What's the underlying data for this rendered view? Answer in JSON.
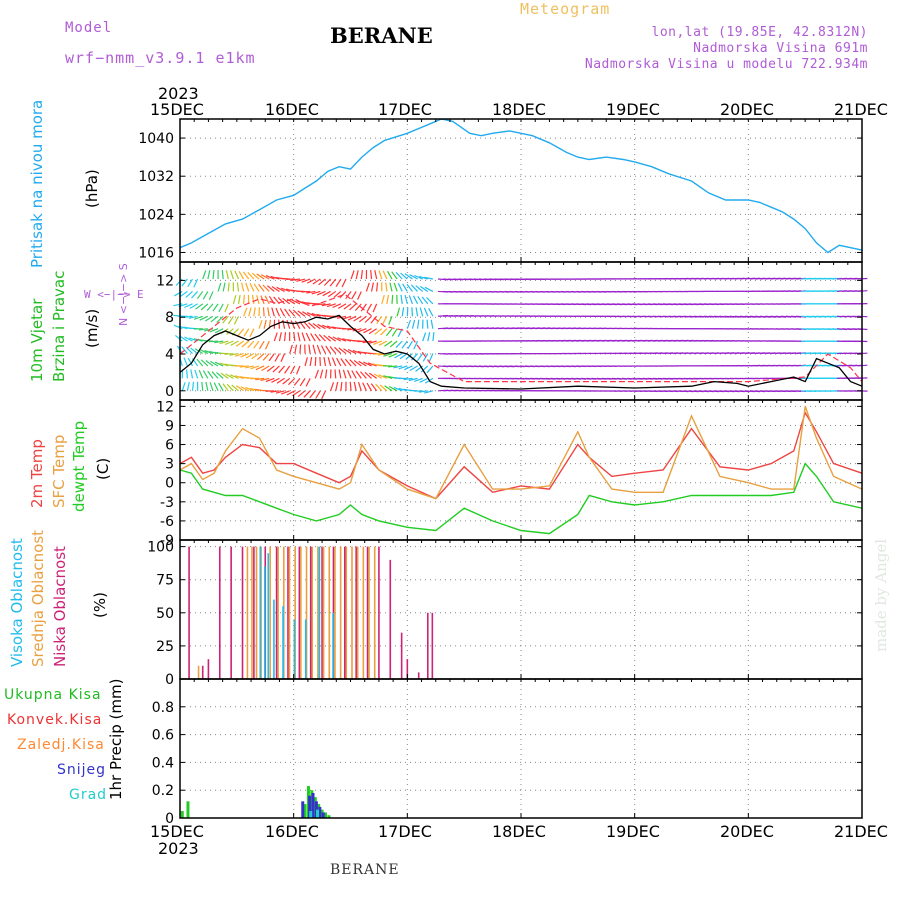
{
  "header": {
    "model_label": "Model",
    "model_name": "wrf−nmm_v3.9.1  e1km",
    "station": "BERANE",
    "product": "Meteogram",
    "coords": "lon,lat (19.85E, 42.8312N)",
    "elevation": "Nadmorska Visina 691m",
    "model_elevation": "Nadmorska Visina u modelu 722.934m"
  },
  "time_axis": {
    "year": "2023",
    "ticks": [
      "15DEC",
      "16DEC",
      "17DEC",
      "18DEC",
      "19DEC",
      "20DEC",
      "21DEC"
    ]
  },
  "labels": {
    "pressure": "Pritisak na nivou mora",
    "pressure_unit": "(hPa)",
    "wind_a": "10m Vjetar",
    "wind_b": "Brzina i Pravac",
    "wind_unit": "(m/s)",
    "wind_compass": "W <−|−> E",
    "wind_compass_b": "N <−|−> S",
    "temp_a": "2m Temp",
    "temp_b": "SFC Temp",
    "temp_c": "dewpt Temp",
    "temp_unit": "(C)",
    "cloud_a": "Visoka Oblacnost",
    "cloud_b": "Srednja Oblacnost",
    "cloud_c": "Niska Oblacnost",
    "cloud_unit": "(%)",
    "precip_unit": "1hr Precip (mm)",
    "credit": "made by Angel"
  },
  "precip_legend": [
    {
      "label": "Ukupna Kisa",
      "color": "#22bb22"
    },
    {
      "label": "Konvek.Kisa",
      "color": "#ee3333"
    },
    {
      "label": "Zaledj.Kisa",
      "color": "#ff8833"
    },
    {
      "label": "Snijeg",
      "color": "#3333cc"
    },
    {
      "label": "Grad",
      "color": "#22cccc"
    }
  ],
  "colors": {
    "pressure": "#22aaee",
    "temp2m": "#ee4444",
    "tempsfc": "#e8a040",
    "dewpt": "#22cc22",
    "cloud_high": "#22bbee",
    "cloud_mid": "#e8a040",
    "cloud_low": "#cc2277",
    "wind_gust": "#ff3344",
    "wind_speed": "#000000",
    "label_pressure": "#22aaee",
    "label_wind": "#22bb22"
  },
  "chart_data": [
    {
      "type": "line",
      "title": "Pritisak na nivou mora",
      "ylabel": "(hPa)",
      "ylim": [
        1014,
        1044
      ],
      "yticks": [
        1016,
        1024,
        1032,
        1040
      ],
      "grid": true,
      "x_days": [
        0,
        0.1,
        0.25,
        0.4,
        0.55,
        0.7,
        0.85,
        1.0,
        1.1,
        1.2,
        1.3,
        1.4,
        1.5,
        1.6,
        1.7,
        1.8,
        2.0,
        2.2,
        2.3,
        2.4,
        2.55,
        2.65,
        2.75,
        2.9,
        3.0,
        3.1,
        3.25,
        3.4,
        3.5,
        3.6,
        3.75,
        3.9,
        4.0,
        4.15,
        4.3,
        4.5,
        4.65,
        4.8,
        5.0,
        5.1,
        5.2,
        5.3,
        5.4,
        5.5,
        5.6,
        5.7,
        5.8,
        5.9,
        6.0
      ],
      "values": [
        1017,
        1018,
        1020,
        1022,
        1023,
        1025,
        1027,
        1028,
        1029.5,
        1031,
        1033,
        1034,
        1033.5,
        1036,
        1038,
        1039.5,
        1041,
        1043,
        1044,
        1043.5,
        1041,
        1040.5,
        1041,
        1041.5,
        1041,
        1040.5,
        1039,
        1037,
        1036,
        1035.5,
        1036,
        1035.5,
        1035,
        1034,
        1032.5,
        1031,
        1028.5,
        1027,
        1027,
        1026.5,
        1025.5,
        1024.5,
        1023,
        1021,
        1018,
        1016,
        1017.5,
        1017,
        1016.5
      ]
    },
    {
      "type": "line",
      "title": "10m Vjetar Brzina i Pravac",
      "ylabel": "(m/s)",
      "ylim": [
        -1,
        14
      ],
      "yticks": [
        0,
        4,
        8,
        12
      ],
      "grid": true,
      "series": [
        {
          "name": "wind speed",
          "x_days": [
            0,
            0.1,
            0.2,
            0.3,
            0.4,
            0.5,
            0.6,
            0.7,
            0.8,
            0.9,
            1.0,
            1.1,
            1.2,
            1.3,
            1.4,
            1.5,
            1.6,
            1.7,
            1.8,
            1.9,
            2.0,
            2.1,
            2.2,
            2.3,
            2.5,
            3.0,
            3.5,
            4.0,
            4.5,
            4.7,
            4.9,
            5.0,
            5.2,
            5.4,
            5.5,
            5.6,
            5.7,
            5.8,
            5.9,
            6.0
          ],
          "values": [
            2,
            3,
            5,
            6,
            6.5,
            6,
            5.5,
            6,
            7,
            7.5,
            7.3,
            7.5,
            8,
            7.8,
            8.2,
            7,
            6,
            4.5,
            4,
            4.3,
            4,
            3,
            1,
            0.5,
            0.3,
            0.2,
            0.5,
            0.3,
            0.5,
            1,
            0.8,
            0.5,
            1,
            1.5,
            1,
            3.5,
            3,
            2.5,
            1,
            0.5
          ]
        },
        {
          "name": "gust",
          "x_days": [
            0,
            0.15,
            0.3,
            0.5,
            0.7,
            0.85,
            1.0,
            1.15,
            1.3,
            1.45,
            1.6,
            1.8,
            2.0,
            2.2,
            2.5,
            3.0,
            3.5,
            4.0,
            4.5,
            5.0,
            5.5,
            5.7,
            5.9,
            6.0
          ],
          "values": [
            4,
            5.5,
            7,
            9,
            10,
            9.5,
            10,
            9.2,
            9.8,
            10.5,
            9,
            7,
            6.5,
            3,
            1,
            1,
            1,
            1,
            1,
            1,
            1.5,
            4,
            2.5,
            1
          ]
        }
      ]
    },
    {
      "type": "line",
      "title": "2m Temp / SFC Temp / dewpt Temp",
      "ylabel": "(C)",
      "ylim": [
        -9,
        13
      ],
      "yticks": [
        -9,
        -6,
        -3,
        0,
        3,
        6,
        9,
        12
      ],
      "grid": true,
      "series": [
        {
          "name": "2m Temp",
          "x_days": [
            0,
            0.1,
            0.2,
            0.3,
            0.4,
            0.55,
            0.7,
            0.85,
            1.0,
            1.2,
            1.4,
            1.5,
            1.6,
            1.75,
            2.0,
            2.25,
            2.5,
            2.75,
            3.0,
            3.25,
            3.5,
            3.6,
            3.8,
            4.0,
            4.25,
            4.5,
            4.75,
            5.0,
            5.2,
            5.4,
            5.5,
            5.6,
            5.75,
            6.0
          ],
          "values": [
            3,
            4,
            1.5,
            2,
            4,
            6,
            5.5,
            3,
            3,
            1.5,
            0,
            1,
            5,
            2,
            -0.5,
            -2.5,
            2.5,
            -1.5,
            -0.5,
            -1,
            6,
            4,
            1,
            1.5,
            2,
            8.5,
            2.5,
            2,
            3,
            5,
            11,
            8,
            3,
            1.5
          ]
        },
        {
          "name": "SFC Temp",
          "x_days": [
            0,
            0.1,
            0.2,
            0.3,
            0.4,
            0.55,
            0.7,
            0.85,
            1.0,
            1.2,
            1.4,
            1.5,
            1.6,
            1.75,
            2.0,
            2.25,
            2.5,
            2.75,
            3.0,
            3.25,
            3.5,
            3.6,
            3.8,
            4.0,
            4.25,
            4.5,
            4.75,
            5.0,
            5.2,
            5.4,
            5.5,
            5.6,
            5.75,
            6.0
          ],
          "values": [
            2,
            3,
            0.5,
            1.5,
            5,
            8.5,
            7,
            2,
            1,
            0,
            -1,
            0,
            6,
            2,
            -1,
            -2.5,
            6,
            -1,
            -1,
            -0.5,
            8,
            4,
            -1,
            -1.5,
            -1.5,
            10.5,
            1,
            0,
            -1,
            -1,
            12,
            7,
            1,
            -1
          ]
        },
        {
          "name": "dewpt Temp",
          "x_days": [
            0,
            0.1,
            0.2,
            0.3,
            0.4,
            0.55,
            0.7,
            0.85,
            1.0,
            1.2,
            1.4,
            1.5,
            1.6,
            1.75,
            2.0,
            2.25,
            2.5,
            2.75,
            3.0,
            3.25,
            3.5,
            3.6,
            3.8,
            4.0,
            4.25,
            4.5,
            4.75,
            5.0,
            5.2,
            5.4,
            5.5,
            5.6,
            5.75,
            6.0
          ],
          "values": [
            2,
            1.5,
            -1,
            -1.5,
            -2,
            -2,
            -3,
            -4,
            -5,
            -6,
            -5,
            -3.5,
            -5,
            -6,
            -7,
            -7.5,
            -4,
            -6,
            -7.5,
            -8,
            -5,
            -2,
            -3,
            -3.5,
            -3,
            -2,
            -2,
            -2,
            -2,
            -1.5,
            3,
            1,
            -3,
            -4
          ]
        }
      ]
    },
    {
      "type": "bar",
      "title": "Visoka / Srednja / Niska Oblacnost",
      "ylabel": "(%)",
      "ylim": [
        0,
        105
      ],
      "yticks": [
        0,
        25,
        50,
        75,
        100
      ],
      "grid": true,
      "series": [
        {
          "name": "Niska Oblacnost",
          "x_days": [
            0.08,
            0.2,
            0.25,
            0.35,
            0.45,
            0.55,
            0.65,
            0.75,
            0.85,
            0.95,
            1.05,
            1.15,
            1.25,
            1.35,
            1.45,
            1.55,
            1.65,
            1.75,
            1.85,
            1.95,
            2.0,
            2.1,
            2.18,
            2.22
          ],
          "values": [
            100,
            10,
            15,
            100,
            100,
            100,
            100,
            100,
            100,
            100,
            100,
            100,
            100,
            100,
            100,
            100,
            100,
            100,
            90,
            35,
            15,
            5,
            50,
            50
          ]
        },
        {
          "name": "Srednja Oblacnost",
          "x_days": [
            0.15,
            0.58,
            0.62,
            0.66,
            0.7,
            0.78,
            0.85,
            0.9,
            0.95,
            1.0,
            1.05,
            1.1,
            1.15,
            1.2,
            1.25,
            1.3,
            1.35,
            1.4,
            1.45,
            1.5,
            1.55,
            1.6,
            1.65,
            1.7
          ],
          "values": [
            10,
            100,
            100,
            100,
            100,
            100,
            100,
            100,
            100,
            100,
            100,
            100,
            100,
            100,
            100,
            100,
            100,
            100,
            100,
            100,
            100,
            100,
            100,
            100
          ]
        },
        {
          "name": "Visoka Oblacnost",
          "x_days": [
            0.68,
            0.72,
            0.75,
            0.8,
            0.88,
            0.98,
            1.08,
            1.2,
            1.32
          ],
          "values": [
            100,
            85,
            95,
            60,
            55,
            45,
            45,
            100,
            50
          ]
        }
      ]
    },
    {
      "type": "bar",
      "title": "1hr Precip",
      "ylabel": "1hr Precip (mm)",
      "ylim": [
        0,
        1.0
      ],
      "yticks": [
        0,
        0.2,
        0.4,
        0.6,
        0.8
      ],
      "grid": true,
      "series": [
        {
          "name": "Ukupna Kisa",
          "x_days": [
            0.02,
            0.07,
            1.1,
            1.13,
            1.16,
            1.19,
            1.22,
            1.25,
            1.28,
            1.31
          ],
          "values": [
            0.05,
            0.12,
            0.1,
            0.23,
            0.2,
            0.15,
            0.1,
            0.06,
            0.04,
            0.02
          ]
        },
        {
          "name": "Snijeg",
          "x_days": [
            1.08,
            1.14,
            1.17,
            1.2,
            1.23,
            1.26
          ],
          "values": [
            0.12,
            0.16,
            0.18,
            0.12,
            0.08,
            0.04
          ]
        },
        {
          "name": "Grad",
          "x_days": [
            1.15,
            1.21
          ],
          "values": [
            0.05,
            0.06
          ]
        }
      ]
    }
  ]
}
